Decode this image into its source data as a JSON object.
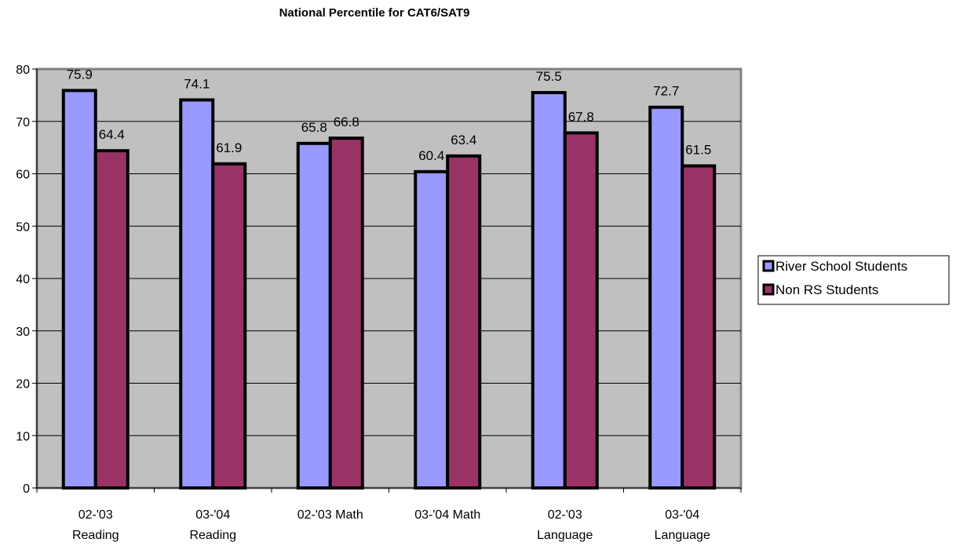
{
  "chart_data": {
    "type": "bar",
    "title": "National Percentile for CAT6/SAT9",
    "xlabel": "",
    "ylabel": "",
    "ylim": [
      0,
      80
    ],
    "yticks": [
      0,
      10,
      20,
      30,
      40,
      50,
      60,
      70,
      80
    ],
    "grid": true,
    "legend_position": "right",
    "categories": [
      [
        "02-'03",
        "Reading"
      ],
      [
        "03-'04",
        "Reading"
      ],
      [
        "02-'03 Math"
      ],
      [
        "03-'04 Math"
      ],
      [
        "02-'03",
        "Language"
      ],
      [
        "03-'04",
        "Language"
      ]
    ],
    "series": [
      {
        "name": "River School Students",
        "values": [
          75.9,
          74.1,
          65.8,
          60.4,
          75.5,
          72.7
        ],
        "color": "#9999ff"
      },
      {
        "name": "Non RS Students",
        "values": [
          64.4,
          61.9,
          66.8,
          63.4,
          67.8,
          61.5
        ],
        "color": "#993366"
      }
    ],
    "plot_background": "#c0c0c0"
  }
}
